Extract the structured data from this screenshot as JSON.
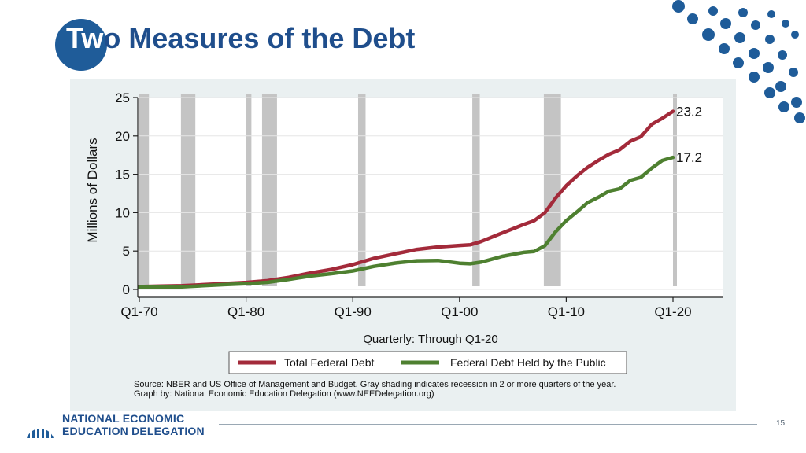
{
  "slide": {
    "title_part1": "Tw",
    "title_part2": "o Measures of the Debt",
    "page_number": "15",
    "logo_line1": "NATIONAL ECONOMIC",
    "logo_line2": "EDUCATION DELEGATION",
    "accent_color": "#1f5c99"
  },
  "chart_data": {
    "type": "line",
    "title": "",
    "xlabel": "Quarterly: Through Q1-20",
    "ylabel": "Millions of Dollars",
    "x_tick_labels": [
      "Q1-70",
      "Q1-80",
      "Q1-90",
      "Q1-00",
      "Q1-10",
      "Q1-20"
    ],
    "x_ticks": [
      1970,
      1980,
      1990,
      2000,
      2010,
      2020
    ],
    "xlim": [
      1970,
      2020
    ],
    "y_ticks": [
      0,
      5,
      10,
      15,
      20,
      25
    ],
    "ylim": [
      0,
      25
    ],
    "grid": true,
    "recessions": [
      [
        1970.0,
        1970.9
      ],
      [
        1973.9,
        1975.25
      ],
      [
        1980.0,
        1980.5
      ],
      [
        1981.5,
        1982.9
      ],
      [
        1990.5,
        1991.2
      ],
      [
        2001.2,
        2001.9
      ],
      [
        2007.9,
        2009.5
      ],
      [
        2020.0,
        2020.25
      ]
    ],
    "series": [
      {
        "name": "Total Federal Debt",
        "color": "#a32a3a",
        "end_label": "23.2",
        "x": [
          1970,
          1972,
          1974,
          1976,
          1978,
          1980,
          1982,
          1984,
          1986,
          1988,
          1990,
          1992,
          1994,
          1996,
          1998,
          2000,
          2001,
          2002,
          2004,
          2006,
          2007,
          2008,
          2009,
          2010,
          2011,
          2012,
          2013,
          2014,
          2015,
          2016,
          2017,
          2018,
          2019,
          2020
        ],
        "values": [
          0.37,
          0.43,
          0.48,
          0.62,
          0.77,
          0.91,
          1.14,
          1.57,
          2.13,
          2.6,
          3.23,
          4.06,
          4.64,
          5.22,
          5.53,
          5.73,
          5.81,
          6.23,
          7.35,
          8.45,
          8.95,
          10.0,
          11.9,
          13.5,
          14.8,
          15.9,
          16.8,
          17.6,
          18.2,
          19.3,
          19.9,
          21.5,
          22.3,
          23.2
        ]
      },
      {
        "name": "Federal Debt Held by the Public",
        "color": "#4e8030",
        "end_label": "17.2",
        "x": [
          1970,
          1972,
          1974,
          1976,
          1978,
          1980,
          1982,
          1984,
          1986,
          1988,
          1990,
          1992,
          1994,
          1996,
          1998,
          2000,
          2001,
          2002,
          2004,
          2006,
          2007,
          2008,
          2009,
          2010,
          2011,
          2012,
          2013,
          2014,
          2015,
          2016,
          2017,
          2018,
          2019,
          2020
        ],
        "values": [
          0.28,
          0.32,
          0.34,
          0.48,
          0.62,
          0.74,
          0.92,
          1.3,
          1.74,
          2.05,
          2.41,
          3.0,
          3.43,
          3.73,
          3.77,
          3.41,
          3.34,
          3.55,
          4.3,
          4.83,
          4.95,
          5.7,
          7.5,
          8.95,
          10.1,
          11.3,
          12.0,
          12.8,
          13.1,
          14.2,
          14.6,
          15.8,
          16.8,
          17.2
        ]
      }
    ],
    "legend_position": "bottom",
    "source_note": "Source: NBER and US Office of Management and Budget. Gray shading indicates recession in 2 or more quarters of the year.",
    "credit_note": "Graph by: National Economic Education Delegation (www.NEEDelegation.org)"
  }
}
